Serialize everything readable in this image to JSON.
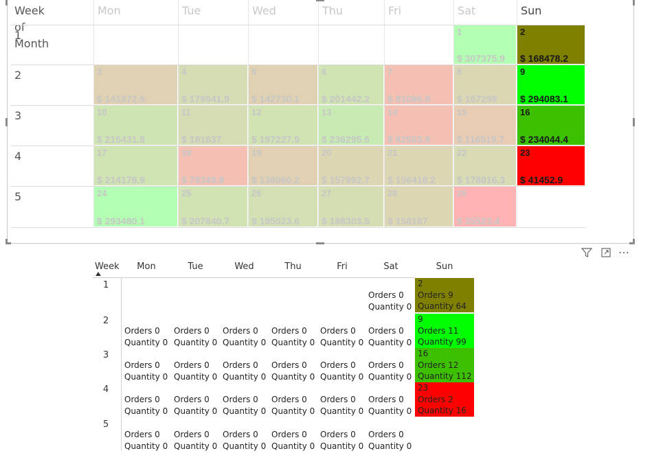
{
  "visual1": {
    "row_header_label": "Week of Month",
    "weekdays": [
      "Mon",
      "Tue",
      "Wed",
      "Thu",
      "Fri",
      "Sat",
      "Sun"
    ],
    "weeks": [
      "1",
      "2",
      "3",
      "4",
      "5"
    ],
    "rows": [
      [
        null,
        null,
        null,
        null,
        null,
        {
          "day": "1",
          "value": "$ 307375.9",
          "color": "#b3ffb3",
          "faded": true
        },
        {
          "day": "2",
          "value": "$ 168478.2",
          "color": "#7f7f00",
          "faded": false
        }
      ],
      [
        {
          "day": "3",
          "value": "$ 141872.5",
          "color": "#e0d1b3",
          "faded": true
        },
        {
          "day": "4",
          "value": "$ 179941.9",
          "color": "#d6dcb3",
          "faded": true
        },
        {
          "day": "5",
          "value": "$ 142730.1",
          "color": "#e0d1b3",
          "faded": true
        },
        {
          "day": "6",
          "value": "$ 201442.2",
          "color": "#d0e3b3",
          "faded": true
        },
        {
          "day": "7",
          "value": "$ 81096.8",
          "color": "#f3c0b3",
          "faded": true
        },
        {
          "day": "8",
          "value": "$ 167299",
          "color": "#dcd7b3",
          "faded": true
        },
        {
          "day": "9",
          "value": "$ 294083.1",
          "color": "#00ff00",
          "faded": false
        }
      ],
      [
        {
          "day": "10",
          "value": "$ 215431.8",
          "color": "#cfe4b3",
          "faded": true
        },
        {
          "day": "11",
          "value": "$ 181637",
          "color": "#d6dcb3",
          "faded": true
        },
        {
          "day": "12",
          "value": "$ 197227.9",
          "color": "#d1e2b3",
          "faded": true
        },
        {
          "day": "13",
          "value": "$ 236295.6",
          "color": "#c8eab3",
          "faded": true
        },
        {
          "day": "14",
          "value": "$ 82503.8",
          "color": "#f3c0b3",
          "faded": true
        },
        {
          "day": "15",
          "value": "$ 116519.7",
          "color": "#e8ccb3",
          "faded": true
        },
        {
          "day": "16",
          "value": "$ 234044.4",
          "color": "#3cc000",
          "faded": false
        }
      ],
      [
        {
          "day": "17",
          "value": "$ 214178.9",
          "color": "#d0e3b3",
          "faded": true
        },
        {
          "day": "18",
          "value": "$ 78349.8",
          "color": "#f3c0b3",
          "faded": true
        },
        {
          "day": "19",
          "value": "$ 138060.2",
          "color": "#e2d0b3",
          "faded": true
        },
        {
          "day": "20",
          "value": "$ 157992.7",
          "color": "#ddd6b3",
          "faded": true
        },
        {
          "day": "21",
          "value": "$ 156418.2",
          "color": "#ddd6b3",
          "faded": true
        },
        {
          "day": "22",
          "value": "$ 178816.3",
          "color": "#d8dbb3",
          "faded": true
        },
        {
          "day": "23",
          "value": "$ 41452.9",
          "color": "#ff0000",
          "faded": false
        }
      ],
      [
        {
          "day": "24",
          "value": "$ 293480.1",
          "color": "#b3ffb3",
          "faded": true
        },
        {
          "day": "25",
          "value": "$ 207840.7",
          "color": "#d1e2b3",
          "faded": true
        },
        {
          "day": "26",
          "value": "$ 195023.6",
          "color": "#d3e0b3",
          "faded": true
        },
        {
          "day": "27",
          "value": "$ 188303.5",
          "color": "#d5ddb3",
          "faded": true
        },
        {
          "day": "28",
          "value": "$ 158187",
          "color": "#ddd6b3",
          "faded": true
        },
        {
          "day": "29",
          "value": "$ 35523.4",
          "color": "#ffb3b3",
          "faded": true
        },
        null
      ]
    ]
  },
  "visual_header_icons": [
    "filter-icon",
    "focus-mode-icon",
    "more-options-icon"
  ],
  "visual2": {
    "week_header": "Week",
    "weekdays": [
      "Mon",
      "Tue",
      "Wed",
      "Thu",
      "Fri",
      "Sat",
      "Sun"
    ],
    "weeks": [
      "1",
      "2",
      "3",
      "4",
      "5"
    ],
    "zero_orders": "Orders 0",
    "zero_quantity": "Quantity 0",
    "sun_cells": [
      {
        "day": "2",
        "orders": "Orders 9",
        "quantity": "Quantity 64",
        "color": "#808000"
      },
      {
        "day": "9",
        "orders": "Orders 11",
        "quantity": "Quantity 99",
        "color": "#00ff00"
      },
      {
        "day": "16",
        "orders": "Orders 12",
        "quantity": "Quantity 112",
        "color": "#3cc000"
      },
      {
        "day": "23",
        "orders": "Orders 2",
        "quantity": "Quantity 16",
        "color": "#ff0000"
      }
    ]
  }
}
